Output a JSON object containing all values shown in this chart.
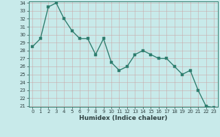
{
  "x": [
    0,
    1,
    2,
    3,
    4,
    5,
    6,
    7,
    8,
    9,
    10,
    11,
    12,
    13,
    14,
    15,
    16,
    17,
    18,
    19,
    20,
    21,
    22,
    23
  ],
  "y": [
    28.5,
    29.5,
    33.5,
    34.0,
    32.0,
    30.5,
    29.5,
    29.5,
    27.5,
    29.5,
    26.5,
    25.5,
    26.0,
    27.5,
    28.0,
    27.5,
    27.0,
    27.0,
    26.0,
    25.0,
    25.5,
    23.0,
    21.0,
    20.8
  ],
  "xlabel": "Humidex (Indice chaleur)",
  "ylim_min": 21,
  "ylim_max": 34,
  "xlim_min": -0.5,
  "xlim_max": 23.5,
  "yticks": [
    21,
    22,
    23,
    24,
    25,
    26,
    27,
    28,
    29,
    30,
    31,
    32,
    33,
    34
  ],
  "xticks": [
    0,
    1,
    2,
    3,
    4,
    5,
    6,
    7,
    8,
    9,
    10,
    11,
    12,
    13,
    14,
    15,
    16,
    17,
    18,
    19,
    20,
    21,
    22,
    23
  ],
  "line_color": "#2e7d6e",
  "marker_color": "#2e7d6e",
  "bg_color": "#c8eaea",
  "grid_color": "#b0c8c8",
  "grid_color_major": "#c8a8a8",
  "spine_color": "#2e7d6e",
  "text_color": "#2e4040",
  "tick_label_fontsize": 5.5,
  "xlabel_fontsize": 6.5
}
